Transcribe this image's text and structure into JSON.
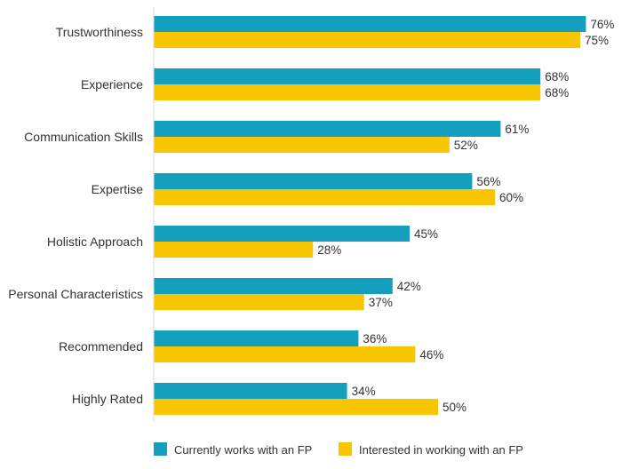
{
  "chart_data": {
    "type": "bar",
    "orientation": "horizontal",
    "title": "",
    "xlabel": "",
    "ylabel": "",
    "xlim": [
      0,
      80
    ],
    "grid": false,
    "legend_position": "bottom",
    "value_suffix": "%",
    "categories": [
      "Trustworthiness",
      "Experience",
      "Communication Skills",
      "Expertise",
      "Holistic Approach",
      "Personal Characteristics",
      "Recommended",
      "Highly Rated"
    ],
    "series": [
      {
        "name": "Currently works with an FP",
        "color": "#159FBF",
        "values": [
          76,
          68,
          61,
          56,
          45,
          42,
          36,
          34
        ]
      },
      {
        "name": "Interested in working with an FP",
        "color": "#F7C600",
        "values": [
          75,
          68,
          52,
          60,
          28,
          37,
          46,
          50
        ]
      }
    ]
  }
}
